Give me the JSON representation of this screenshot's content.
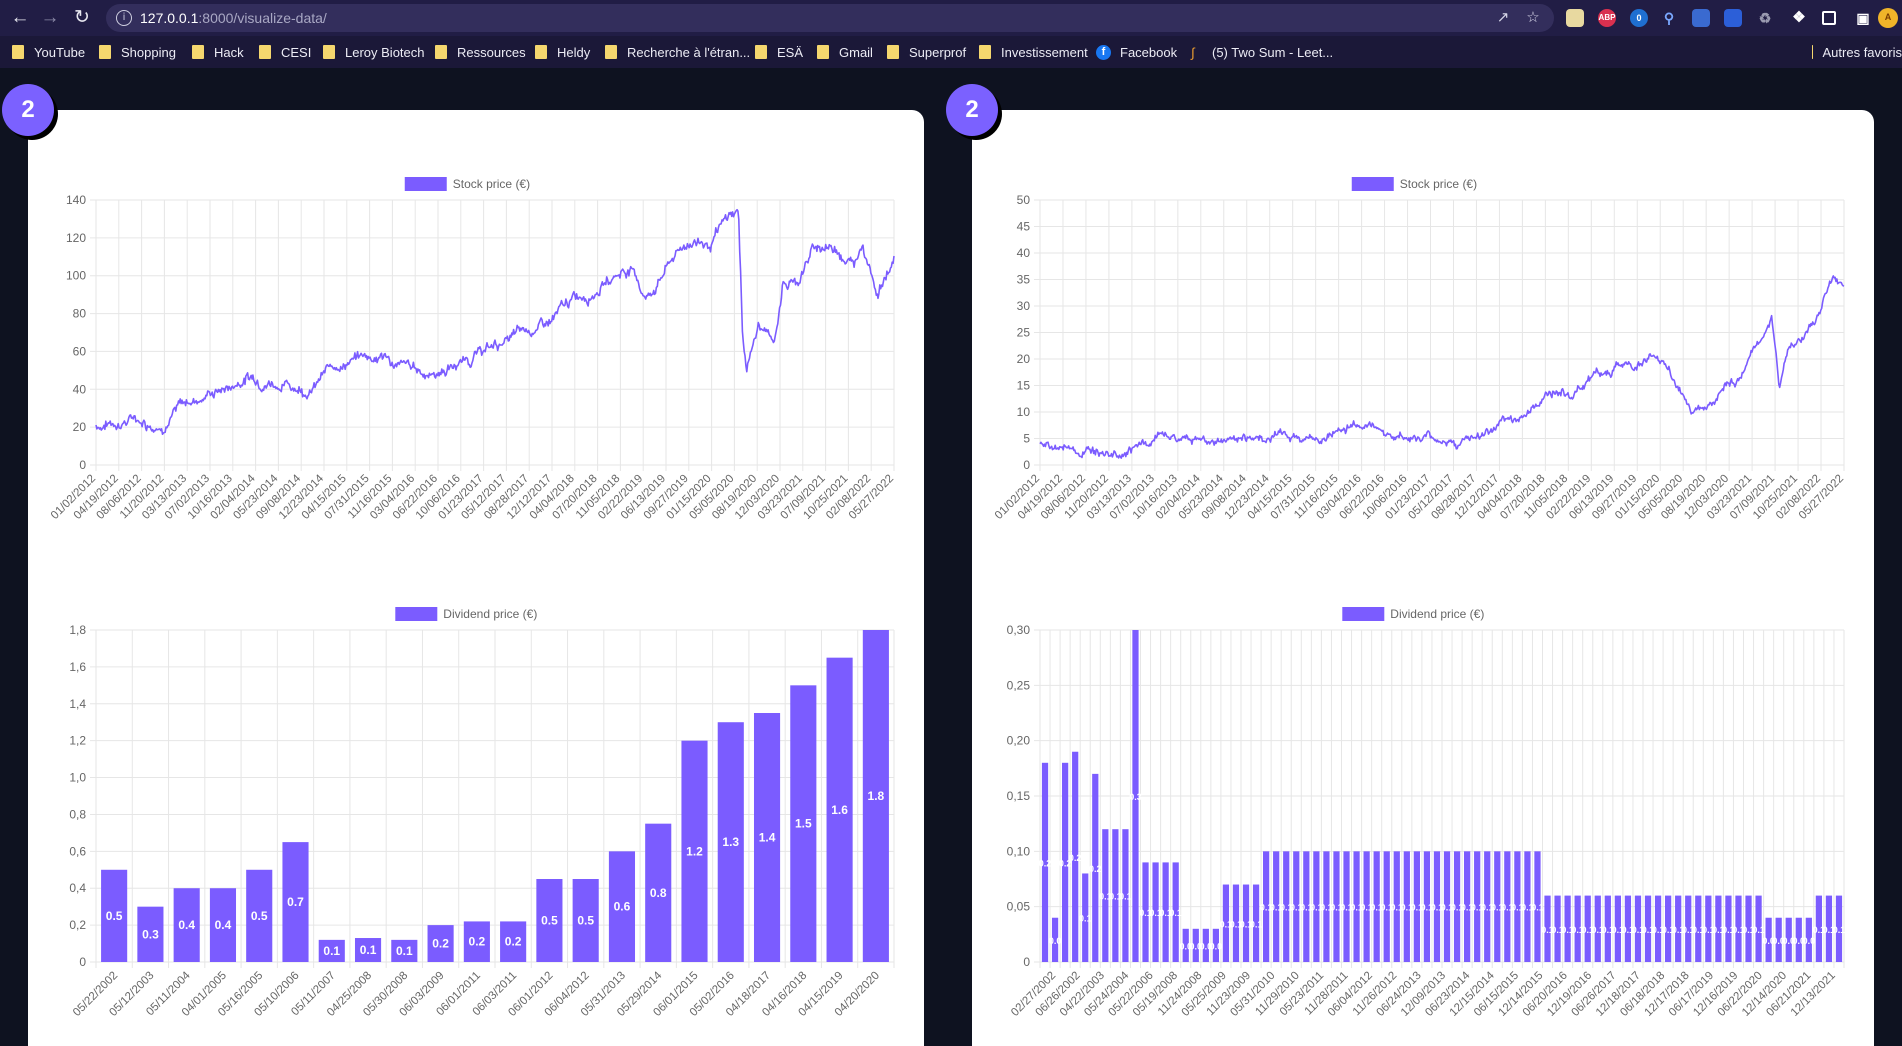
{
  "browser": {
    "url_host": "127.0.0.1",
    "url_rest": ":8000/visualize-data/",
    "extensions": [
      {
        "name": "abp-icon",
        "label": "ABP",
        "color": "#d9304f"
      },
      {
        "name": "badge-counter-icon",
        "label": "0",
        "color": "#1f6fd1"
      }
    ],
    "bookmarks": [
      {
        "label": "YouTube",
        "icon": "folder-icon"
      },
      {
        "label": "Shopping",
        "icon": "folder-icon"
      },
      {
        "label": "Hack",
        "icon": "folder-icon"
      },
      {
        "label": "CESI",
        "icon": "folder-icon"
      },
      {
        "label": "Leroy Biotech",
        "icon": "folder-icon"
      },
      {
        "label": "Ressources",
        "icon": "folder-icon"
      },
      {
        "label": "Heldy",
        "icon": "folder-icon"
      },
      {
        "label": "Recherche à l'étran...",
        "icon": "folder-icon"
      },
      {
        "label": "ESÄ",
        "icon": "folder-icon"
      },
      {
        "label": "Gmail",
        "icon": "folder-icon"
      },
      {
        "label": "Superprof",
        "icon": "folder-icon"
      },
      {
        "label": "Investissement",
        "icon": "folder-icon"
      },
      {
        "label": "Facebook",
        "icon": "facebook-icon"
      },
      {
        "label": "(5) Two Sum - Leet...",
        "icon": "leetcode-icon"
      },
      {
        "label": "Autres favoris",
        "icon": "folder-icon"
      }
    ]
  },
  "panels": [
    {
      "badge": "2"
    },
    {
      "badge": "2"
    }
  ],
  "colors": {
    "accent": "#7b5cff",
    "badge": "#7b61ff",
    "grid": "#e6e6e6",
    "tick": "#666666"
  },
  "chart_data": [
    {
      "type": "line",
      "legend": "Stock price (€)",
      "ylim": [
        0,
        140
      ],
      "yticks": [
        0,
        20,
        40,
        60,
        80,
        100,
        120,
        140
      ],
      "x_tick_labels": [
        "01/02/2012",
        "04/19/2012",
        "08/06/2012",
        "11/20/2012",
        "03/13/2013",
        "07/02/2013",
        "10/16/2013",
        "02/04/2014",
        "05/23/2014",
        "09/08/2014",
        "12/23/2014",
        "04/15/2015",
        "07/31/2015",
        "11/16/2015",
        "03/04/2016",
        "06/22/2016",
        "10/06/2016",
        "01/23/2017",
        "05/12/2017",
        "08/28/2017",
        "12/12/2017",
        "04/04/2018",
        "07/20/2018",
        "11/05/2018",
        "02/22/2019",
        "06/13/2019",
        "09/27/2019",
        "01/15/2020",
        "05/05/2020",
        "08/19/2020",
        "12/03/2020",
        "03/23/2021",
        "07/09/2021",
        "10/25/2021",
        "02/08/2022",
        "05/27/2022"
      ],
      "trend": [
        [
          0,
          21
        ],
        [
          0.05,
          25
        ],
        [
          0.08,
          22
        ],
        [
          0.1,
          30
        ],
        [
          0.14,
          38
        ],
        [
          0.17,
          42
        ],
        [
          0.19,
          47
        ],
        [
          0.22,
          46
        ],
        [
          0.24,
          43
        ],
        [
          0.27,
          41
        ],
        [
          0.3,
          53
        ],
        [
          0.33,
          57
        ],
        [
          0.36,
          58
        ],
        [
          0.38,
          52
        ],
        [
          0.42,
          48
        ],
        [
          0.45,
          53
        ],
        [
          0.5,
          63
        ],
        [
          0.54,
          70
        ],
        [
          0.57,
          75
        ],
        [
          0.6,
          87
        ],
        [
          0.64,
          98
        ],
        [
          0.67,
          105
        ],
        [
          0.69,
          88
        ],
        [
          0.72,
          108
        ],
        [
          0.75,
          120
        ],
        [
          0.77,
          116
        ],
        [
          0.79,
          128
        ],
        [
          0.805,
          134
        ],
        [
          0.81,
          70
        ],
        [
          0.815,
          52
        ],
        [
          0.83,
          73
        ],
        [
          0.85,
          64
        ],
        [
          0.86,
          95
        ],
        [
          0.88,
          98
        ],
        [
          0.9,
          115
        ],
        [
          0.93,
          115
        ],
        [
          0.95,
          106
        ],
        [
          0.96,
          120
        ],
        [
          0.98,
          93
        ],
        [
          1,
          110
        ]
      ]
    },
    {
      "type": "line",
      "legend": "Stock price (€)",
      "ylim": [
        0,
        50
      ],
      "yticks": [
        0,
        5,
        10,
        15,
        20,
        25,
        30,
        35,
        40,
        45,
        50
      ],
      "x_tick_labels": [
        "01/02/2012",
        "04/19/2012",
        "08/06/2012",
        "11/20/2012",
        "03/13/2013",
        "07/02/2013",
        "10/16/2013",
        "02/04/2014",
        "05/23/2014",
        "09/08/2014",
        "12/23/2014",
        "04/15/2015",
        "07/31/2015",
        "11/16/2015",
        "03/04/2016",
        "06/22/2016",
        "10/06/2016",
        "01/23/2017",
        "05/12/2017",
        "08/28/2017",
        "12/12/2017",
        "04/04/2018",
        "07/20/2018",
        "11/05/2018",
        "02/22/2019",
        "06/13/2019",
        "09/27/2019",
        "01/15/2020",
        "05/05/2020",
        "08/19/2020",
        "12/03/2020",
        "03/23/2021",
        "07/09/2021",
        "10/25/2021",
        "02/08/2022",
        "05/27/2022"
      ],
      "trend": [
        [
          0,
          3.5
        ],
        [
          0.04,
          3
        ],
        [
          0.06,
          2.5
        ],
        [
          0.1,
          3.5
        ],
        [
          0.16,
          5
        ],
        [
          0.2,
          4.8
        ],
        [
          0.24,
          5
        ],
        [
          0.3,
          5.5
        ],
        [
          0.35,
          4.8
        ],
        [
          0.4,
          8
        ],
        [
          0.44,
          6
        ],
        [
          0.48,
          5
        ],
        [
          0.52,
          4.5
        ],
        [
          0.56,
          6
        ],
        [
          0.6,
          9
        ],
        [
          0.63,
          14
        ],
        [
          0.66,
          13
        ],
        [
          0.69,
          17.5
        ],
        [
          0.72,
          19
        ],
        [
          0.74,
          19
        ],
        [
          0.76,
          21
        ],
        [
          0.79,
          15
        ],
        [
          0.81,
          11
        ],
        [
          0.84,
          14
        ],
        [
          0.87,
          17
        ],
        [
          0.9,
          25
        ],
        [
          0.91,
          28
        ],
        [
          0.92,
          15
        ],
        [
          0.93,
          22
        ],
        [
          0.95,
          24
        ],
        [
          0.97,
          30
        ],
        [
          0.985,
          35
        ],
        [
          1,
          33
        ]
      ],
      "trend_scale_note": ""
    },
    {
      "type": "bar",
      "legend": "Dividend price (€)",
      "ylim": [
        0,
        1.8
      ],
      "yticks": [
        "0",
        "0,2",
        "0,4",
        "0,6",
        "0,8",
        "1,0",
        "1,2",
        "1,4",
        "1,6",
        "1,8"
      ],
      "categories": [
        "05/22/2002",
        "05/12/2003",
        "05/11/2004",
        "04/01/2005",
        "05/16/2005",
        "05/10/2006",
        "05/11/2007",
        "04/25/2008",
        "05/30/2008",
        "06/03/2009",
        "06/01/2011",
        "06/03/2011",
        "06/01/2012",
        "06/04/2012",
        "05/31/2013",
        "05/29/2014",
        "06/01/2015",
        "05/02/2016",
        "04/18/2017",
        "04/16/2018",
        "04/15/2019",
        "04/20/2020"
      ],
      "values": [
        0.5,
        0.3,
        0.4,
        0.4,
        0.5,
        0.65,
        0.12,
        0.13,
        0.12,
        0.2,
        0.22,
        0.22,
        0.45,
        0.45,
        0.6,
        0.75,
        1.2,
        1.3,
        1.35,
        1.5,
        1.65,
        1.8
      ],
      "data_labels": [
        "0.5",
        "0.3",
        "0.4",
        "0.4",
        "0.5",
        "0.7",
        "0.1",
        "0.1",
        "0.1",
        "0.2",
        "0.2",
        "0.2",
        "0.5",
        "0.5",
        "0.6",
        "0.8",
        "1.2",
        "1.3",
        "1.4",
        "1.5",
        "1.6",
        "1.8"
      ]
    },
    {
      "type": "bar",
      "legend": "Dividend price (€)",
      "ylim": [
        0,
        0.3
      ],
      "yticks": [
        "0",
        "0,05",
        "0,10",
        "0,15",
        "0,20",
        "0,25",
        "0,30"
      ],
      "x_tick_labels": [
        "02/27/2002",
        "06/26/2002",
        "04/22/2003",
        "05/24/2004",
        "05/22/2006",
        "05/19/2008",
        "11/24/2008",
        "05/25/2009",
        "11/23/2009",
        "05/31/2010",
        "11/29/2010",
        "05/23/2011",
        "11/28/2011",
        "06/04/2012",
        "11/26/2012",
        "06/24/2013",
        "12/09/2013",
        "06/23/2014",
        "12/15/2014",
        "06/15/2015",
        "12/14/2015",
        "06/20/2016",
        "12/19/2016",
        "06/26/2017",
        "12/18/2017",
        "06/18/2018",
        "12/17/2018",
        "06/17/2019",
        "12/16/2019",
        "06/22/2020",
        "12/14/2020",
        "06/21/2021",
        "12/13/2021"
      ],
      "values": [
        0.18,
        0.04,
        0.18,
        0.19,
        0.08,
        0.17,
        0.12,
        0.12,
        0.12,
        0.3,
        0.09,
        0.09,
        0.09,
        0.09,
        0.03,
        0.03,
        0.03,
        0.03,
        0.07,
        0.07,
        0.07,
        0.07,
        0.1,
        0.1,
        0.1,
        0.1,
        0.1,
        0.1,
        0.1,
        0.1,
        0.1,
        0.1,
        0.1,
        0.1,
        0.1,
        0.1,
        0.1,
        0.1,
        0.1,
        0.1,
        0.1,
        0.1,
        0.1,
        0.1,
        0.1,
        0.1,
        0.1,
        0.1,
        0.1,
        0.1,
        0.06,
        0.06,
        0.06,
        0.06,
        0.06,
        0.06,
        0.06,
        0.06,
        0.06,
        0.06,
        0.06,
        0.06,
        0.06,
        0.06,
        0.06,
        0.06,
        0.06,
        0.06,
        0.06,
        0.06,
        0.06,
        0.06,
        0.04,
        0.04,
        0.04,
        0.04,
        0.04,
        0.06,
        0.06,
        0.06
      ],
      "data_labels": [
        "0.2",
        "0.0",
        "0.2",
        "0.2",
        "0.1",
        "0.2",
        "0.1",
        "0.1",
        "0.1",
        "0.3",
        "0.1",
        "0.1",
        "0.1",
        "0.1",
        "0.0",
        "0.0",
        "0.0",
        "0.0",
        "0.1",
        "0.1",
        "0.1",
        "0.1",
        "0.1",
        "0.1",
        "0.1",
        "0.1",
        "0.1",
        "0.1",
        "0.1",
        "0.1",
        "0.1",
        "0.1",
        "0.1",
        "0.1",
        "0.1",
        "0.1",
        "0.1",
        "0.1",
        "0.1",
        "0.1",
        "0.1",
        "0.1",
        "0.1",
        "0.1",
        "0.1",
        "0.1",
        "0.1",
        "0.1",
        "0.1",
        "0.1",
        "0.1",
        "0.1",
        "0.1",
        "0.1",
        "0.1",
        "0.1",
        "0.1",
        "0.1",
        "0.1",
        "0.1",
        "0.1",
        "0.1",
        "0.1",
        "0.1",
        "0.1",
        "0.1",
        "0.1",
        "0.1",
        "0.1",
        "0.1",
        "0.1",
        "0.1",
        "0.0",
        "0.0",
        "0.0",
        "0.0",
        "0.0",
        "0.1",
        "0.1",
        "0.1"
      ]
    }
  ]
}
